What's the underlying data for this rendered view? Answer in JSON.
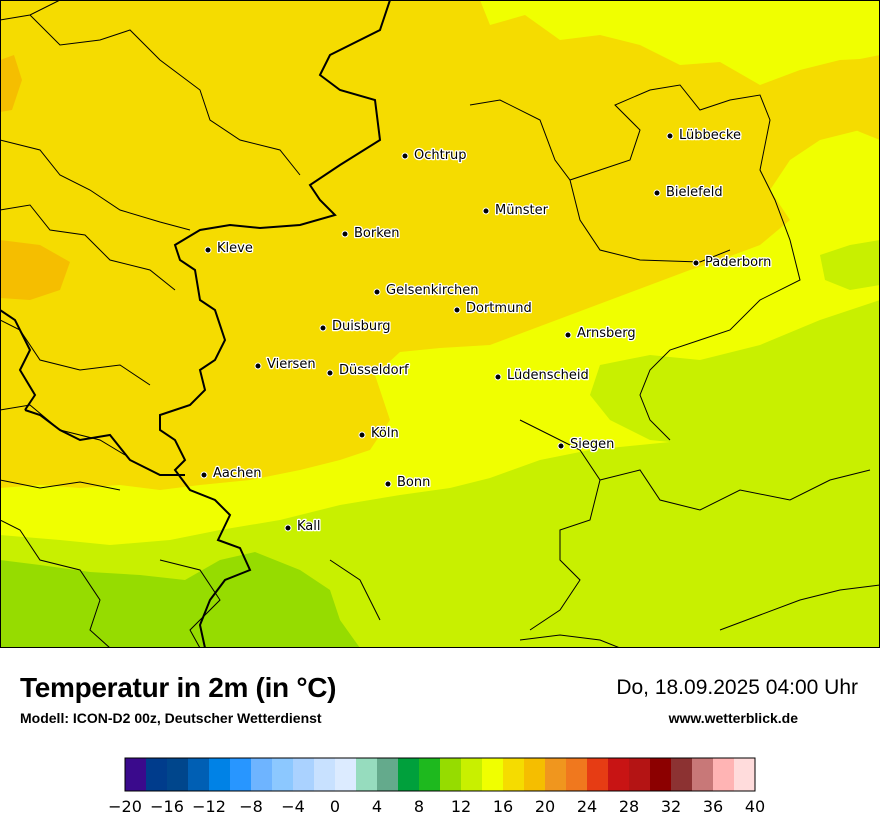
{
  "header": {
    "title": "Temperatur in 2m (in °C)",
    "model": "Modell: ICON-D2 00z, Deutscher Wetterdienst",
    "datetime": "Do, 18.09.2025 04:00 Uhr",
    "website": "www.wetterblick.de"
  },
  "map": {
    "cities": [
      "Lübbecke",
      "Ochtrup",
      "Bielefeld",
      "Münster",
      "Borken",
      "Kleve",
      "Paderborn",
      "Gelsenkirchen",
      "Dortmund",
      "Duisburg",
      "Arnsberg",
      "Viersen",
      "Düsseldorf",
      "Lüdenscheid",
      "Köln",
      "Siegen",
      "Aachen",
      "Bonn",
      "Kall"
    ]
  },
  "legend": {
    "ticks": [
      "−20",
      "−16",
      "−12",
      "−8",
      "−4",
      "0",
      "4",
      "8",
      "12",
      "16",
      "20",
      "24",
      "28",
      "32",
      "36",
      "40"
    ],
    "colors": [
      "#3a0a8c",
      "#003c8c",
      "#00468c",
      "#005fb4",
      "#0082e6",
      "#2896ff",
      "#6eb4ff",
      "#8cc8ff",
      "#aad2ff",
      "#c8e1ff",
      "#dcebff",
      "#96dcbe",
      "#64aa8c",
      "#00a03c",
      "#1eb91e",
      "#96dc00",
      "#c8f000",
      "#f0ff00",
      "#f5dc00",
      "#f5be00",
      "#f0961e",
      "#f0781e",
      "#e63c14",
      "#c81414",
      "#b41414",
      "#8c0000",
      "#8c3232",
      "#c87878",
      "#ffb4b4",
      "#ffdcdc"
    ]
  }
}
